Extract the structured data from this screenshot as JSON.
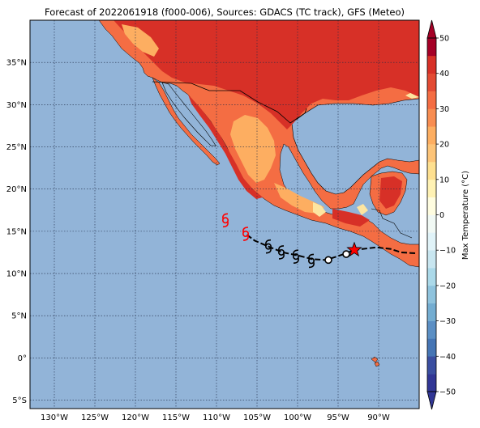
{
  "title": "Forecast of 2022061918 (f000-006), Sources: GDACS (TC track), GFS (Meteo)",
  "colors": {
    "ocean": "#92b4d8",
    "land_cold": "#fde5a0",
    "land_mild": "#fdae61",
    "land_warm": "#f46d43",
    "land_hot": "#d73027",
    "track_observed": "#000000",
    "track_forecast": "#ff0000",
    "grid": "#1e2a45"
  },
  "map": {
    "lon_range": [
      -133,
      -85
    ],
    "lat_range": [
      -6,
      40
    ],
    "lon_ticks": [
      -130,
      -125,
      -120,
      -115,
      -110,
      -105,
      -100,
      -95,
      -90
    ],
    "lat_ticks": [
      -5,
      0,
      5,
      10,
      15,
      20,
      25,
      30,
      35
    ],
    "lon_labels": [
      "130°W",
      "125°W",
      "120°W",
      "115°W",
      "110°W",
      "105°W",
      "100°W",
      "95°W",
      "90°W"
    ],
    "lat_labels": [
      "5°S",
      "0°",
      "5°N",
      "10°N",
      "15°N",
      "20°N",
      "25°N",
      "30°N",
      "35°N"
    ]
  },
  "colorbar": {
    "label": "Max Temperature (°C)",
    "min": -50,
    "max": 50,
    "ticks": [
      "50",
      "40",
      "30",
      "20",
      "10",
      "0",
      "−10",
      "−20",
      "−30",
      "−40",
      "−50"
    ],
    "levels": [
      {
        "from": -50,
        "to": -45,
        "color": "#313695"
      },
      {
        "from": -45,
        "to": -40,
        "color": "#3a4ea0"
      },
      {
        "from": -40,
        "to": -35,
        "color": "#4575b4"
      },
      {
        "from": -35,
        "to": -30,
        "color": "#5b8fc4"
      },
      {
        "from": -30,
        "to": -25,
        "color": "#74add1"
      },
      {
        "from": -25,
        "to": -20,
        "color": "#8fc3dd"
      },
      {
        "from": -20,
        "to": -15,
        "color": "#abd9e9"
      },
      {
        "from": -15,
        "to": -10,
        "color": "#c8e6f0"
      },
      {
        "from": -10,
        "to": -5,
        "color": "#e0f3f8"
      },
      {
        "from": -5,
        "to": 0,
        "color": "#f1f9f4"
      },
      {
        "from": 0,
        "to": 5,
        "color": "#fffde0"
      },
      {
        "from": 5,
        "to": 10,
        "color": "#fff2b4"
      },
      {
        "from": 10,
        "to": 15,
        "color": "#fee090"
      },
      {
        "from": 15,
        "to": 20,
        "color": "#fdc478"
      },
      {
        "from": 20,
        "to": 25,
        "color": "#fdae61"
      },
      {
        "from": 25,
        "to": 30,
        "color": "#f88d51"
      },
      {
        "from": 30,
        "to": 35,
        "color": "#f46d43"
      },
      {
        "from": 35,
        "to": 40,
        "color": "#e34a33"
      },
      {
        "from": 40,
        "to": 45,
        "color": "#d73027"
      },
      {
        "from": 45,
        "to": 50,
        "color": "#a50026"
      }
    ]
  },
  "track": {
    "genesis_star": [
      -93.0,
      12.8
    ],
    "observed_path": [
      [
        -85.5,
        12.4
      ],
      [
        -87.2,
        12.5
      ],
      [
        -88.5,
        12.9
      ],
      [
        -90.3,
        13.1
      ],
      [
        -92.0,
        12.9
      ],
      [
        -93.0,
        12.8
      ],
      [
        -94.0,
        12.4
      ],
      [
        -95.2,
        12.0
      ],
      [
        -96.5,
        11.6
      ],
      [
        -98.2,
        11.7
      ],
      [
        -99.8,
        12.1
      ],
      [
        -101.8,
        12.5
      ],
      [
        -103.6,
        13.2
      ],
      [
        -105.3,
        13.9
      ],
      [
        -106.4,
        14.7
      ]
    ],
    "observed_symbols": [
      {
        "lon": -94.0,
        "lat": 12.3,
        "kind": "circle"
      },
      {
        "lon": -96.2,
        "lat": 11.6,
        "kind": "circle"
      },
      {
        "lon": -98.3,
        "lat": 11.5,
        "kind": "storm"
      },
      {
        "lon": -100.2,
        "lat": 12.0,
        "kind": "storm"
      },
      {
        "lon": -102.0,
        "lat": 12.5,
        "kind": "storm"
      },
      {
        "lon": -103.6,
        "lat": 13.2,
        "kind": "storm"
      }
    ],
    "forecast_symbols": [
      {
        "lon": -106.4,
        "lat": 14.7
      },
      {
        "lon": -108.9,
        "lat": 16.3
      }
    ]
  }
}
